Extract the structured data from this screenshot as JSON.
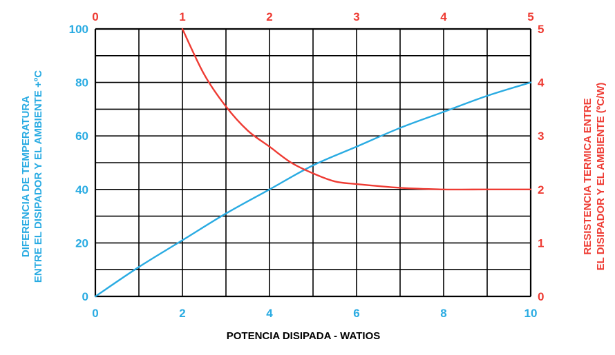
{
  "chart_data": {
    "type": "line",
    "xlabel": "POTENCIA DISIPADA - WATIOS",
    "ylabel_left": [
      "DIFERENCIA DE TEMPERATURA",
      "ENTRE EL DISIPADOR Y EL AMBIENTE +ºC"
    ],
    "ylabel_right": [
      "RESISTENCIA TERMICA ENTRE",
      "EL DISIPADOR Y EL AMBIENTE (ºC/W)"
    ],
    "x_bottom": {
      "lim": [
        0,
        10
      ],
      "ticks": [
        "0",
        "2",
        "4",
        "6",
        "8",
        "10"
      ]
    },
    "x_top": {
      "lim": [
        0,
        5
      ],
      "ticks": [
        "0",
        "1",
        "2",
        "3",
        "4",
        "5"
      ]
    },
    "y_left": {
      "lim": [
        0,
        100
      ],
      "ticks": [
        "0",
        "20",
        "40",
        "60",
        "80",
        "100"
      ]
    },
    "y_right": {
      "lim": [
        0,
        5
      ],
      "ticks": [
        "0",
        "1",
        "2",
        "3",
        "4",
        "5"
      ]
    },
    "grid": true,
    "colors": {
      "blue": "#29abe2",
      "red": "#ee3b33",
      "grid": "#000000"
    },
    "series": [
      {
        "color": "#29abe2",
        "axes": "bottom-left",
        "x": [
          0,
          1,
          2,
          3,
          4,
          5,
          6,
          7,
          8,
          9,
          10
        ],
        "y": [
          0,
          11,
          21,
          31,
          40,
          49,
          56,
          63,
          69,
          75,
          80
        ]
      },
      {
        "color": "#ee3b33",
        "axes": "top-right",
        "x": [
          1.0,
          1.25,
          1.5,
          1.75,
          2.0,
          2.25,
          2.5,
          2.75,
          3.0,
          3.5,
          4.0,
          4.5,
          5.0
        ],
        "y": [
          5.0,
          4.15,
          3.55,
          3.1,
          2.8,
          2.5,
          2.3,
          2.15,
          2.1,
          2.03,
          2.0,
          2.0,
          2.0
        ]
      }
    ]
  }
}
